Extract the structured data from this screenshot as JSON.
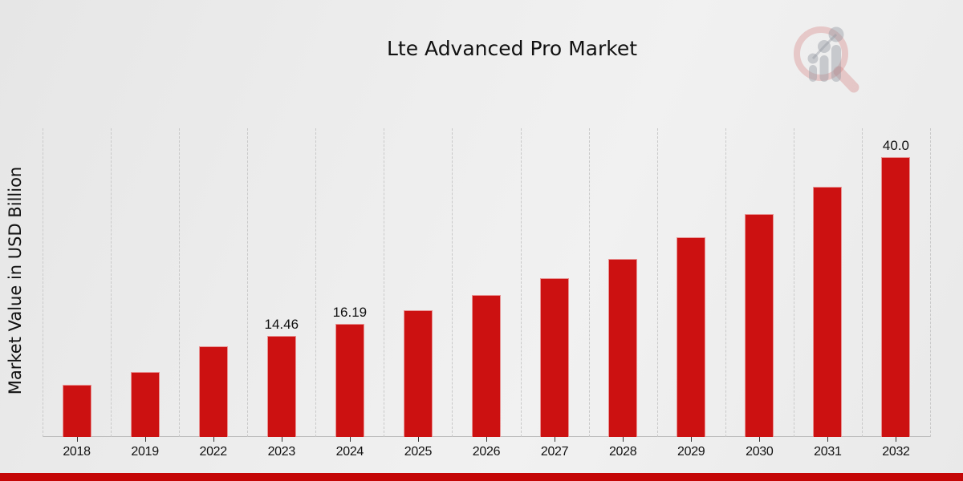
{
  "title": "Lte Advanced Pro Market",
  "ylabel": "Market Value in USD Billion",
  "colors": {
    "bar": "#cc1111",
    "accent_strip": "#c40606",
    "gridline": "#c9c9c9",
    "text": "#111111",
    "background_start": "#e6e6e6",
    "background_end": "#f1f1f1"
  },
  "watermark_icon": "magnifier-bar-chart-logo",
  "chart_data": {
    "type": "bar",
    "title": "Lte Advanced Pro Market",
    "xlabel": "",
    "ylabel": "Market Value in USD Billion",
    "categories": [
      "2018",
      "2019",
      "2022",
      "2023",
      "2024",
      "2025",
      "2026",
      "2027",
      "2028",
      "2029",
      "2030",
      "2031",
      "2032"
    ],
    "values": [
      7.4,
      9.3,
      12.9,
      14.46,
      16.19,
      18.1,
      20.3,
      22.7,
      25.4,
      28.5,
      31.9,
      35.7,
      40.0
    ],
    "bar_labels": [
      "",
      "",
      "",
      "14.46",
      "16.19",
      "",
      "",
      "",
      "",
      "",
      "",
      "",
      "40.0"
    ],
    "ylim": [
      0,
      44.1
    ],
    "grid": "vertical-dashed",
    "legend": "none",
    "bar_color": "#cc1111"
  }
}
